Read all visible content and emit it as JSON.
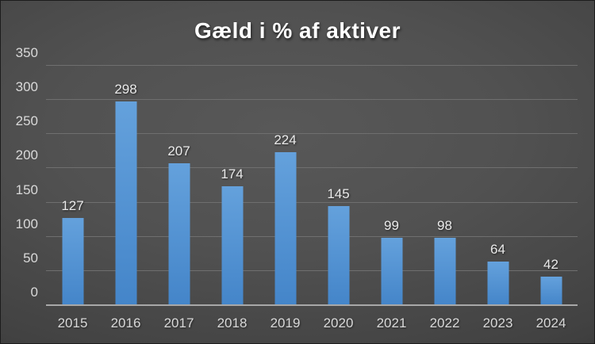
{
  "chart_data": {
    "type": "bar",
    "title": "Gæld i % af aktiver",
    "categories": [
      "2015",
      "2016",
      "2017",
      "2018",
      "2019",
      "2020",
      "2021",
      "2022",
      "2023",
      "2024"
    ],
    "values": [
      127,
      298,
      207,
      174,
      224,
      145,
      99,
      98,
      64,
      42
    ],
    "data_labels": [
      127,
      298,
      207,
      174,
      224,
      145,
      99,
      98,
      64,
      42
    ],
    "xlabel": "",
    "ylabel": "",
    "ylim": [
      0,
      350
    ],
    "yticks": [
      0,
      50,
      100,
      150,
      200,
      250,
      300,
      350
    ],
    "grid": true,
    "legend_position": "none",
    "colors": {
      "bar_gradient_top": "#64a1dc",
      "bar_gradient_bottom": "#4485c9",
      "gridline": "#6f6f6f",
      "axis_line": "#a8a8a8",
      "tick_label": "#d9d9d9",
      "data_label": "#eaeaea",
      "title": "#ffffff",
      "background_center": "#585858",
      "background_edge": "#242424"
    }
  }
}
